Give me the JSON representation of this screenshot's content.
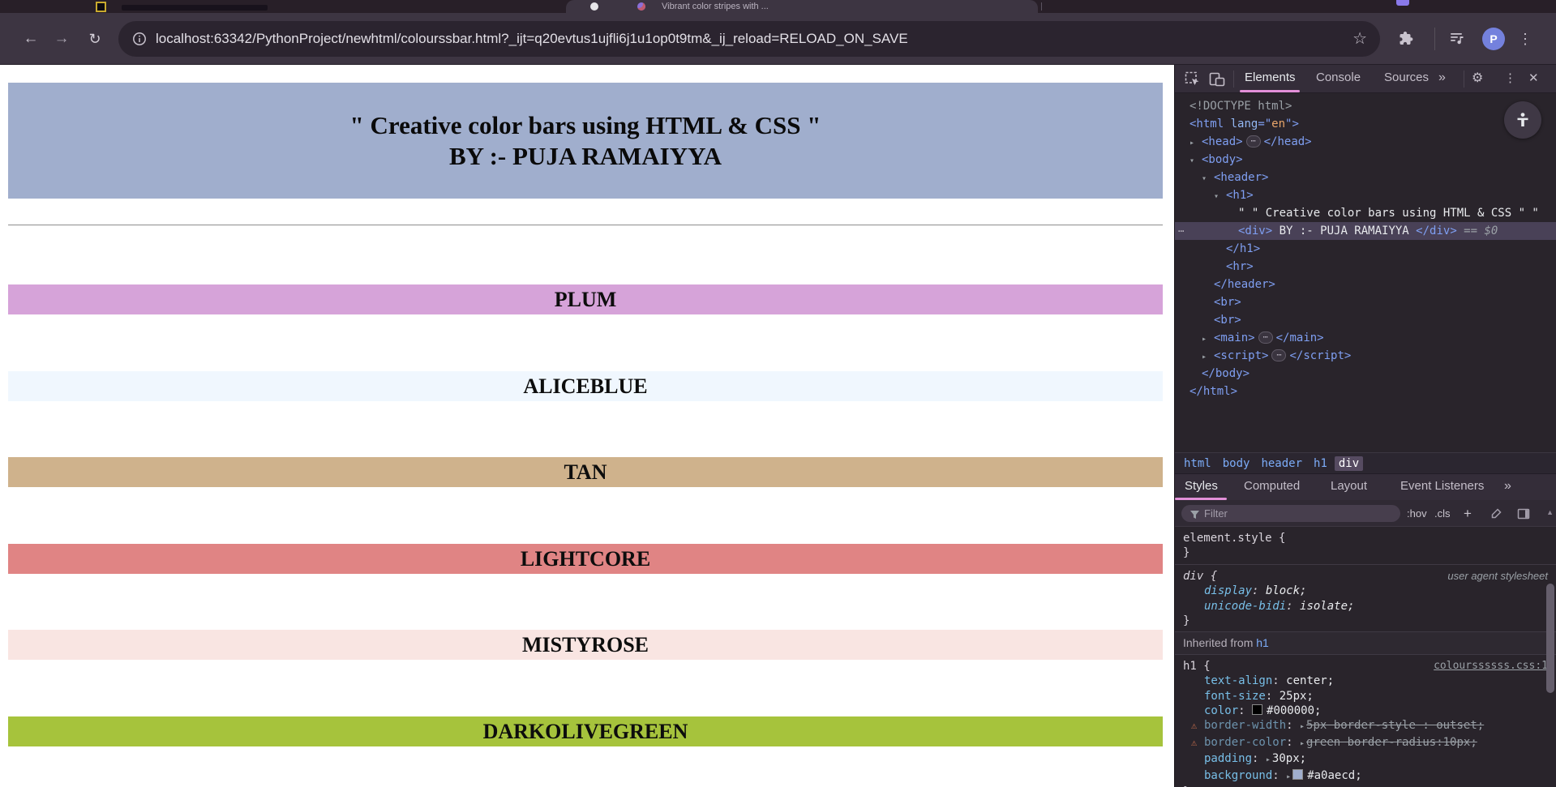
{
  "icons": {
    "back": "←",
    "forward": "→",
    "reload": "↻",
    "star": "☆",
    "kebab": "⋮",
    "close": "✕",
    "more": "»",
    "scroll_up": "▲",
    "badge": "⋯",
    "gutter": "⋯",
    "gear": "⚙",
    "collapsed_arrow": "▸",
    "expanded_arrow": "▾",
    "warning": "⚠"
  },
  "browser": {
    "tabs": [
      {
        "title": ""
      },
      {
        "title": "Vibrant color stripes with ..."
      }
    ],
    "toolbar": {
      "url": "localhost:63342/PythonProject/newhtml/colourssbar.html?_ijt=q20evtus1ujfli6j1u1op0t9tm&_ij_reload=RELOAD_ON_SAVE"
    },
    "profile_initial": "P"
  },
  "page": {
    "header_bg": "#a0aecd",
    "title_line1": "\" Creative color bars using HTML & CSS \"",
    "title_line2": "BY :- PUJA RAMAIYYA",
    "bars": [
      {
        "label": "PLUM",
        "color": "#d6a3d9"
      },
      {
        "label": "ALICEBLUE",
        "color": "#f0f7fe"
      },
      {
        "label": "TAN",
        "color": "#cfb28c"
      },
      {
        "label": "LIGHTCORE",
        "color": "#e08484"
      },
      {
        "label": "MISTYROSE",
        "color": "#f9e5e2"
      },
      {
        "label": "DARKOLIVEGREEN",
        "color": "#a6c33c"
      }
    ]
  },
  "devtools": {
    "tabs": [
      "Elements",
      "Console",
      "Sources"
    ],
    "dom": [
      {
        "ind": 0,
        "segs": [
          [
            "doc",
            "<!DOCTYPE html>"
          ]
        ]
      },
      {
        "ind": 0,
        "segs": [
          [
            "tag",
            "<html"
          ],
          [
            "attr",
            " lang"
          ],
          [
            "tag",
            "=\""
          ],
          [
            "val",
            "en"
          ],
          [
            "tag",
            "\">"
          ]
        ]
      },
      {
        "ind": 1,
        "segs": [
          [
            "arrow",
            "▸"
          ],
          [
            "tag",
            "<head>"
          ],
          [
            "badge",
            "⋯"
          ],
          [
            "tag",
            "</head>"
          ]
        ]
      },
      {
        "ind": 1,
        "segs": [
          [
            "arrowd",
            "▾"
          ],
          [
            "tag",
            "<body>"
          ]
        ]
      },
      {
        "ind": 2,
        "segs": [
          [
            "arrowd",
            "▾"
          ],
          [
            "tag",
            "<header>"
          ]
        ]
      },
      {
        "ind": 3,
        "segs": [
          [
            "arrowd",
            "▾"
          ],
          [
            "tag",
            "<h1>"
          ]
        ]
      },
      {
        "ind": 4,
        "segs": [
          [
            "txt",
            "\" \" Creative color bars using HTML & CSS \" \""
          ]
        ]
      },
      {
        "ind": 4,
        "sel": true,
        "gutter": true,
        "segs": [
          [
            "tag",
            "<div>"
          ],
          [
            "txt",
            " BY :- PUJA RAMAIYYA "
          ],
          [
            "tag",
            "</div>"
          ],
          [
            "eq",
            " == "
          ],
          [
            "dollar",
            "$0"
          ]
        ]
      },
      {
        "ind": 3,
        "segs": [
          [
            "tag",
            "</h1>"
          ]
        ]
      },
      {
        "ind": 3,
        "segs": [
          [
            "tag",
            "<hr>"
          ]
        ]
      },
      {
        "ind": 2,
        "segs": [
          [
            "tag",
            "</header>"
          ]
        ]
      },
      {
        "ind": 2,
        "segs": [
          [
            "tag",
            "<br>"
          ]
        ]
      },
      {
        "ind": 2,
        "segs": [
          [
            "tag",
            "<br>"
          ]
        ]
      },
      {
        "ind": 2,
        "segs": [
          [
            "arrow",
            "▸"
          ],
          [
            "tag",
            "<main>"
          ],
          [
            "badge",
            "⋯"
          ],
          [
            "tag",
            "</main>"
          ]
        ]
      },
      {
        "ind": 2,
        "segs": [
          [
            "arrow",
            "▸"
          ],
          [
            "tag",
            "<script>"
          ],
          [
            "badge",
            "⋯"
          ],
          [
            "tag",
            "</script>"
          ]
        ]
      },
      {
        "ind": 1,
        "segs": [
          [
            "tag",
            "</body>"
          ]
        ]
      },
      {
        "ind": 0,
        "segs": [
          [
            "tag",
            "</html>"
          ]
        ]
      }
    ],
    "breadcrumb": [
      "html",
      "body",
      "header",
      "h1",
      "div"
    ],
    "styles_tabs": [
      "Styles",
      "Computed",
      "Layout",
      "Event Listeners"
    ],
    "filter_placeholder": "Filter",
    "toggles": {
      "hov": ":hov",
      "cls": ".cls",
      "plus": "+"
    },
    "brace_open": "{",
    "brace_close": "}",
    "inherited_label": "Inherited from ",
    "inherited_target": "h1",
    "rules": [
      {
        "type": "rule",
        "selector": "element.style",
        "decls": []
      },
      {
        "type": "rule",
        "selector": "div",
        "ua": true,
        "link": "user agent stylesheet",
        "decls": [
          {
            "prop": "display",
            "value": "block"
          },
          {
            "prop": "unicode-bidi",
            "value": "isolate"
          }
        ]
      },
      {
        "type": "section"
      },
      {
        "type": "rule",
        "selector": "h1",
        "link": "colourssssss.css:1",
        "src": true,
        "decls": [
          {
            "prop": "text-align",
            "value": "center"
          },
          {
            "prop": "font-size",
            "value": "25px"
          },
          {
            "prop": "color",
            "value": "#000000",
            "swatch": "#000000"
          },
          {
            "prop": "border-width",
            "value": "5px border-style : outset",
            "warn": true,
            "struck": true,
            "arrow": true
          },
          {
            "prop": "border-color",
            "value": "green border-radius:10px",
            "warn": true,
            "struck": true,
            "arrow": true
          },
          {
            "prop": "padding",
            "value": "30px",
            "arrow": true
          },
          {
            "prop": "background",
            "value": "#a0aecd",
            "swatch": "#a0aecd",
            "arrow": true
          }
        ]
      }
    ]
  }
}
